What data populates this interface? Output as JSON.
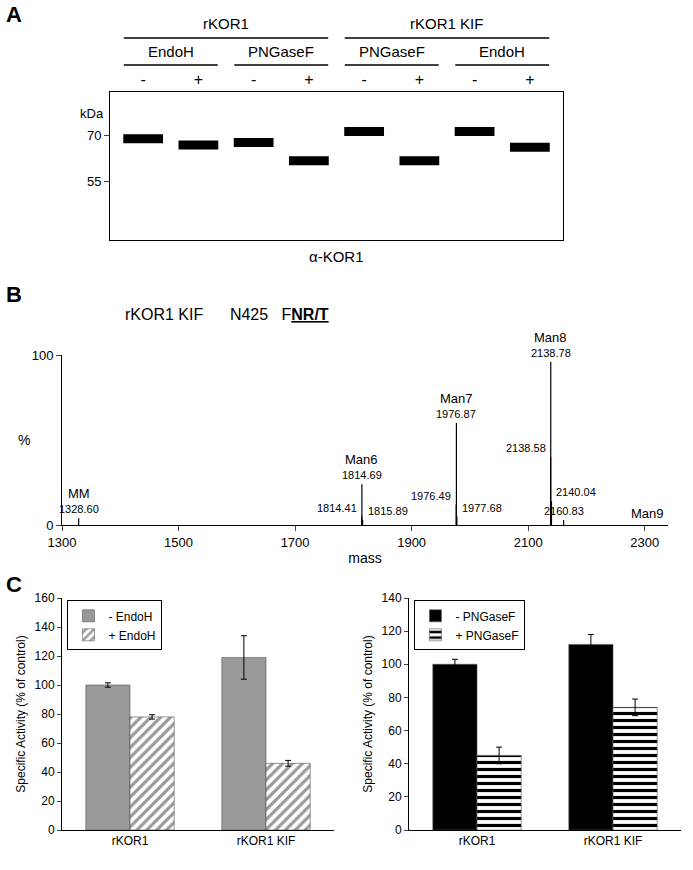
{
  "chart_data": [
    {
      "panel_label": "A",
      "type": "blot",
      "groups": [
        "rKOR1",
        "rKOR1 KIF"
      ],
      "treatments": [
        "EndoH",
        "PNGaseF",
        "PNGaseF",
        "EndoH"
      ],
      "categories": [
        "-",
        "+",
        "-",
        "+",
        "-",
        "+",
        "-",
        "+"
      ],
      "values": [
        68.8,
        66.8,
        67.6,
        61.7,
        71.2,
        61.7,
        71.2,
        66.1
      ],
      "y_label": "kDa",
      "ylim": [
        36,
        84
      ],
      "yticks": [
        55,
        70
      ],
      "x_label": "α-KOR1",
      "color": "#000000"
    },
    {
      "panel_label": "B",
      "type": "spectrum",
      "title": "rKOR1 KIF",
      "site": "N425",
      "motif_prefix": "F",
      "motif": "NR/T",
      "x_label": "mass",
      "y_label": "%",
      "xlim": [
        1300,
        2340
      ],
      "xticks": [
        1300,
        1500,
        1700,
        1900,
        2100,
        2300
      ],
      "ylim": [
        0,
        100
      ],
      "yticks": [
        0,
        100
      ],
      "x": [
        1328.6,
        1814.41,
        1814.69,
        1815.89,
        1976.49,
        1976.87,
        1977.68,
        2138.58,
        2138.78,
        2140.04,
        2160.83
      ],
      "values": [
        4,
        5,
        24,
        3,
        12,
        60,
        5,
        40,
        96,
        14,
        3
      ],
      "x_labels": [
        "1328.60",
        "1814.41",
        "1814.69",
        "1815.89",
        "1976.49",
        "1976.87",
        "1977.68",
        "2138.58",
        "2138.78",
        "2140.04",
        "2160.83"
      ],
      "annotations": [
        {
          "text": "MM",
          "x": 1328.6
        },
        {
          "text": "Man6",
          "x": 1814.69
        },
        {
          "text": "Man7",
          "x": 1976.87
        },
        {
          "text": "Man8",
          "x": 2138.78
        },
        {
          "text": "Man9",
          "x": 2305
        }
      ],
      "color": "#000000"
    },
    {
      "panel_label": "C",
      "type": "bar",
      "categories": [
        "rKOR1",
        "rKOR1 KIF"
      ],
      "y_label": "Specific Activity (% of control)",
      "ylim": [
        0,
        160
      ],
      "yticks": [
        0,
        20,
        40,
        60,
        80,
        100,
        120,
        140,
        160
      ],
      "legend": "upper left",
      "series": [
        {
          "name": "- EndoH",
          "color": "#999999",
          "values": [
            100,
            119
          ],
          "errors": [
            1.5,
            15
          ]
        },
        {
          "name": "+ EndoH",
          "color": "#999999",
          "marker": "diagonal",
          "values": [
            78,
            46
          ],
          "errors": [
            1.5,
            2
          ]
        }
      ]
    },
    {
      "type": "bar",
      "categories": [
        "rKOR1",
        "rKOR1 KIF"
      ],
      "y_label": "Specific Activity (% of control)",
      "ylim": [
        0,
        140
      ],
      "yticks": [
        0,
        20,
        40,
        60,
        80,
        100,
        120,
        140
      ],
      "legend": "upper left",
      "series": [
        {
          "name": "- PNGaseF",
          "color": "#000000",
          "values": [
            100,
            112
          ],
          "errors": [
            3,
            6
          ]
        },
        {
          "name": "+ PNGaseF",
          "color": "#000000",
          "marker": "horizontal",
          "values": [
            45,
            74
          ],
          "errors": [
            5,
            5
          ]
        }
      ]
    }
  ]
}
